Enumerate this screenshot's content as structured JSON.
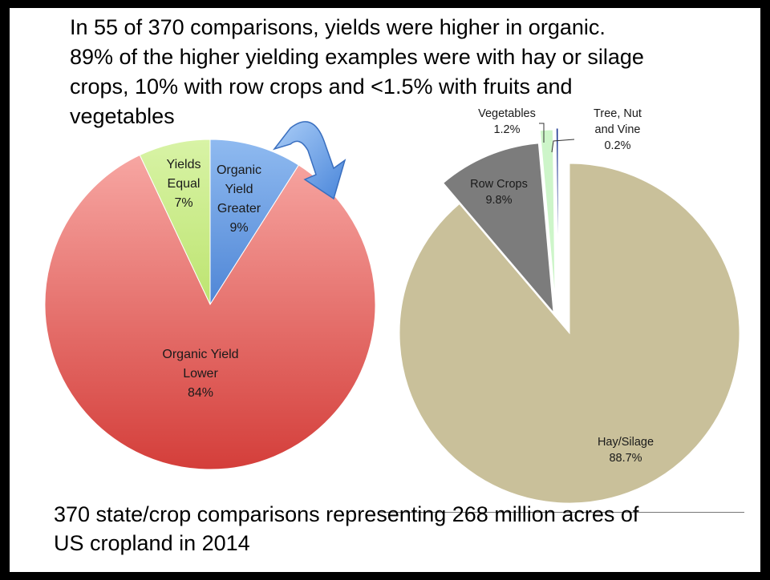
{
  "headline": {
    "lines": [
      "In 55 of 370 comparisons, yields were higher in organic.",
      "89% of the higher yielding examples were with hay or silage",
      "crops, 10% with row crops and <1.5% with fruits and",
      "vegetables"
    ]
  },
  "footer": {
    "lines": [
      "370 state/crop comparisons representing 268 million acres of",
      "US cropland in 2014"
    ]
  },
  "chart_data": [
    {
      "type": "pie",
      "slices": [
        {
          "label": [
            "Organic",
            "Yield",
            "Greater",
            "9%"
          ],
          "value": 9,
          "color": "#6b9fe6"
        },
        {
          "label": [
            "Organic Yield",
            "Lower",
            "84%"
          ],
          "value": 84,
          "color": "#e2605c"
        },
        {
          "label": [
            "Yields",
            "Equal",
            "7%"
          ],
          "value": 7,
          "color": "#c9ec86"
        }
      ]
    },
    {
      "type": "pie",
      "exploded": true,
      "slices": [
        {
          "label": [
            "Hay/Silage",
            "88.7%"
          ],
          "value": 88.7,
          "color": "#c9c09a"
        },
        {
          "label": [
            "Row Crops",
            "9.8%"
          ],
          "value": 9.8,
          "color": "#7c7c7c"
        },
        {
          "label": [
            "Vegetables",
            "1.2%"
          ],
          "value": 1.2,
          "color": "#cdf5c9"
        },
        {
          "label": [
            "Tree, Nut",
            "and Vine",
            "0.2%"
          ],
          "value": 0.2,
          "color": "#1f3a93"
        }
      ]
    }
  ]
}
